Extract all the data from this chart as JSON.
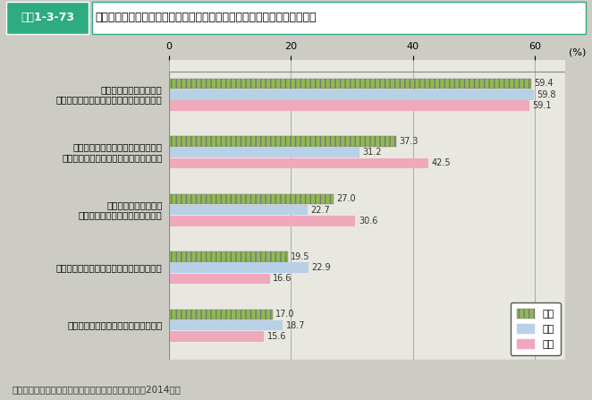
{
  "title_box": "図表1-3-73",
  "title_text": "「夫は外で働き妻は家庭を守るべきである」という考え方に賛成する理由",
  "categories": [
    "妻が家庭を守った方が、\n子どもの成長などにとって良いと思うから",
    "家事・育児・介護と両立しながら、\n妻が働き続けることは大変だと思うから",
    "夫が外で働いた方が、\n多くの収入を得られると思うから",
    "日本の伝統的な家族の在り方だと思うから",
    "自分の両親も役割分担をしていたから"
  ],
  "series": {
    "総数": [
      59.4,
      37.3,
      27.0,
      19.5,
      17.0
    ],
    "男性": [
      59.8,
      31.2,
      22.7,
      22.9,
      18.7
    ],
    "女性": [
      59.1,
      42.5,
      30.6,
      16.6,
      15.6
    ]
  },
  "colors": {
    "総数": "#8fba52",
    "男性": "#b8d0e8",
    "女性": "#f0a8bc"
  },
  "hatch": {
    "総数": "|||",
    "男性": "",
    "女性": ""
  },
  "xlim": [
    0,
    65
  ],
  "xticks": [
    0,
    20,
    40,
    60
  ],
  "source": "資料：内閣府「女性の活躍推進に関する世論調査」（2014年）",
  "outer_bg": "#ccccc4",
  "plot_bg": "#e8e8e0",
  "title_bg": "#2eab82",
  "title_box_bg": "#2eab82",
  "bar_height": 0.18,
  "legend_labels": [
    "総数",
    "男性",
    "女性"
  ]
}
